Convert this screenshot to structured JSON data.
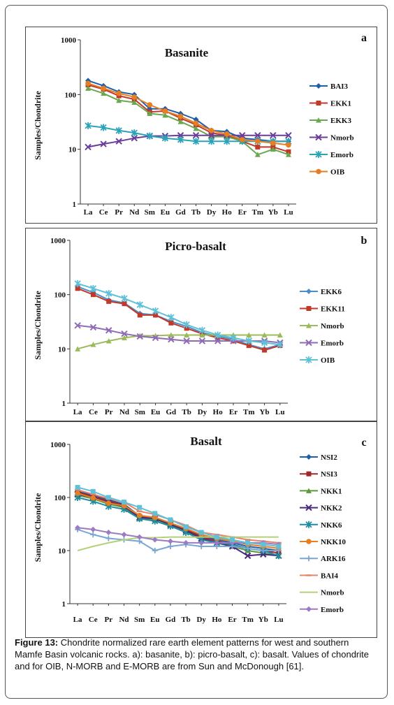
{
  "caption": {
    "label": "Figure 13:",
    "text": "Chondrite normalized rare earth element patterns for west and southern Mamfe Basin volcanic rocks. a): basanite, b): picro-basalt, c): basalt. Values of chondrite and for OIB, N-MORB and E-MORB are from Sun and McDonough [61]."
  },
  "chart_data": [
    {
      "type": "line",
      "letter": "a",
      "title": "Basanite",
      "ylabel": "Samples/Chondrite",
      "xlabel": "",
      "yscale": "log",
      "ylim": [
        1,
        1000
      ],
      "yticks": [
        "1",
        "10",
        "100",
        "1000"
      ],
      "grid": false,
      "legend_position": "right",
      "categories": [
        "La",
        "Ce",
        "Pr",
        "Nd",
        "Sm",
        "Eu",
        "Gd",
        "Tb",
        "Dy",
        "Ho",
        "Er",
        "Tm",
        "Yb",
        "Lu"
      ],
      "series": [
        {
          "name": "BAI3",
          "color": "#1f5fa8",
          "marker": "diamond",
          "values": [
            180,
            145,
            112,
            100,
            55,
            55,
            45,
            35,
            22,
            21,
            16,
            15,
            14,
            14
          ]
        },
        {
          "name": "EKK1",
          "color": "#c0392b",
          "marker": "square",
          "values": [
            150,
            125,
            95,
            82,
            48,
            50,
            37,
            28,
            20,
            18,
            14,
            11,
            11,
            9
          ]
        },
        {
          "name": "EKK3",
          "color": "#6aa84f",
          "marker": "triangle",
          "values": [
            130,
            105,
            78,
            72,
            45,
            42,
            32,
            24,
            17,
            17,
            14,
            8,
            10,
            8
          ]
        },
        {
          "name": "Nmorb",
          "color": "#6a3d9a",
          "marker": "x",
          "values": [
            11,
            12.5,
            14,
            16,
            17.5,
            17.5,
            18,
            18,
            18,
            18,
            18,
            18,
            18,
            18
          ]
        },
        {
          "name": "Emorb",
          "color": "#2aa3b8",
          "marker": "star",
          "values": [
            27,
            25,
            22,
            20,
            17.5,
            16,
            15,
            14,
            14,
            14,
            14,
            14,
            14,
            14
          ]
        },
        {
          "name": "OIB",
          "color": "#e67e22",
          "marker": "circle",
          "values": [
            160,
            130,
            105,
            90,
            65,
            50,
            40,
            30,
            22,
            19,
            15,
            14,
            13,
            12
          ]
        }
      ]
    },
    {
      "type": "line",
      "letter": "b",
      "title": "Picro-basalt",
      "ylabel": "Samples/Chondrite",
      "xlabel": "",
      "yscale": "log",
      "ylim": [
        1,
        1000
      ],
      "yticks": [
        "1",
        "10",
        "100",
        "1000"
      ],
      "grid": false,
      "legend_position": "right",
      "categories": [
        "La",
        "Ce",
        "Pr",
        "Nd",
        "Sm",
        "Eu",
        "Gd",
        "Tb",
        "Dy",
        "Ho",
        "Er",
        "Tm",
        "Yb",
        "Lu"
      ],
      "series": [
        {
          "name": "EKK6",
          "color": "#4a8fc9",
          "marker": "diamond",
          "values": [
            140,
            110,
            80,
            70,
            45,
            42,
            32,
            26,
            20,
            17,
            15,
            12,
            10,
            12
          ]
        },
        {
          "name": "EKK11",
          "color": "#c0392b",
          "marker": "square",
          "values": [
            130,
            100,
            75,
            68,
            42,
            42,
            30,
            24,
            19,
            16,
            14,
            11.5,
            9.5,
            11.5
          ]
        },
        {
          "name": "Nmorb",
          "color": "#9bbb59",
          "marker": "triangle",
          "values": [
            10,
            12,
            14,
            16,
            17.5,
            17.5,
            18,
            18,
            18,
            18,
            18,
            18,
            18,
            18
          ]
        },
        {
          "name": "Emorb",
          "color": "#8e6bb5",
          "marker": "x",
          "values": [
            27,
            25,
            22,
            19,
            17,
            16,
            15,
            14,
            14,
            14,
            14,
            14,
            14,
            13
          ]
        },
        {
          "name": "OIB",
          "color": "#5fc0d8",
          "marker": "star",
          "values": [
            160,
            130,
            105,
            85,
            65,
            50,
            38,
            28,
            22,
            18,
            16,
            14,
            13,
            12
          ]
        }
      ]
    },
    {
      "type": "line",
      "letter": "c",
      "title": "Basalt",
      "ylabel": "Samples/Chondrite",
      "xlabel": "",
      "yscale": "log",
      "ylim": [
        1,
        1000
      ],
      "yticks": [
        "1",
        "10",
        "100",
        "1000"
      ],
      "grid": false,
      "legend_position": "right",
      "categories": [
        "La",
        "Ce",
        "Pr",
        "Nd",
        "Sm",
        "Eu",
        "Gd",
        "Tb",
        "Dy",
        "Ho",
        "Er",
        "Tm",
        "Yb",
        "Lu"
      ],
      "series": [
        {
          "name": "NSI2",
          "color": "#1f5fa8",
          "marker": "diamond",
          "values": [
            130,
            110,
            90,
            75,
            45,
            42,
            33,
            26,
            19,
            16,
            14,
            12,
            11,
            10
          ]
        },
        {
          "name": "NSI3",
          "color": "#a0282b",
          "marker": "square",
          "values": [
            125,
            105,
            85,
            72,
            44,
            41,
            32,
            25,
            18,
            15,
            13,
            11,
            10,
            9
          ]
        },
        {
          "name": "NKK1",
          "color": "#5b9a3c",
          "marker": "triangle",
          "values": [
            110,
            95,
            75,
            65,
            40,
            38,
            30,
            23,
            17,
            14,
            12,
            10,
            9,
            8
          ]
        },
        {
          "name": "NKK2",
          "color": "#4b2a7a",
          "marker": "x",
          "values": [
            115,
            100,
            80,
            68,
            42,
            40,
            31,
            24,
            17,
            14,
            12,
            8,
            8.5,
            8
          ]
        },
        {
          "name": "NKK6",
          "color": "#1e8c9e",
          "marker": "star",
          "values": [
            100,
            85,
            68,
            60,
            40,
            36,
            29,
            22,
            16,
            14,
            13,
            11,
            10,
            8
          ]
        },
        {
          "name": "NKK10",
          "color": "#e67e22",
          "marker": "circle",
          "values": [
            120,
            98,
            78,
            70,
            46,
            42,
            33,
            26,
            20,
            17,
            15,
            13,
            12,
            11
          ]
        },
        {
          "name": "ARK16",
          "color": "#7aa6d6",
          "marker": "plus",
          "values": [
            25,
            20,
            17,
            16,
            15,
            10,
            12,
            13,
            12,
            12,
            12,
            11,
            10,
            10
          ]
        },
        {
          "name": "BAI4",
          "color": "#e8836b",
          "marker": "dash",
          "values": [
            140,
            115,
            95,
            82,
            55,
            48,
            38,
            30,
            22,
            20,
            18,
            16,
            15,
            14
          ]
        },
        {
          "name": "Nmorb",
          "color": "#b5cf7a",
          "marker": "none",
          "values": [
            10,
            12,
            14,
            16,
            17.5,
            17.5,
            18,
            18,
            18,
            18,
            18,
            18,
            18,
            18
          ]
        },
        {
          "name": "Emorb",
          "color": "#9c7bc2",
          "marker": "diamond",
          "values": [
            27,
            25,
            22,
            20,
            18,
            16,
            15,
            14,
            14,
            14,
            14,
            14,
            14,
            13
          ]
        },
        {
          "name": "",
          "color": "#5fc0d8",
          "marker": "square",
          "values": [
            155,
            130,
            100,
            82,
            65,
            50,
            38,
            28,
            22,
            18,
            16,
            14,
            13,
            12
          ]
        }
      ]
    }
  ]
}
